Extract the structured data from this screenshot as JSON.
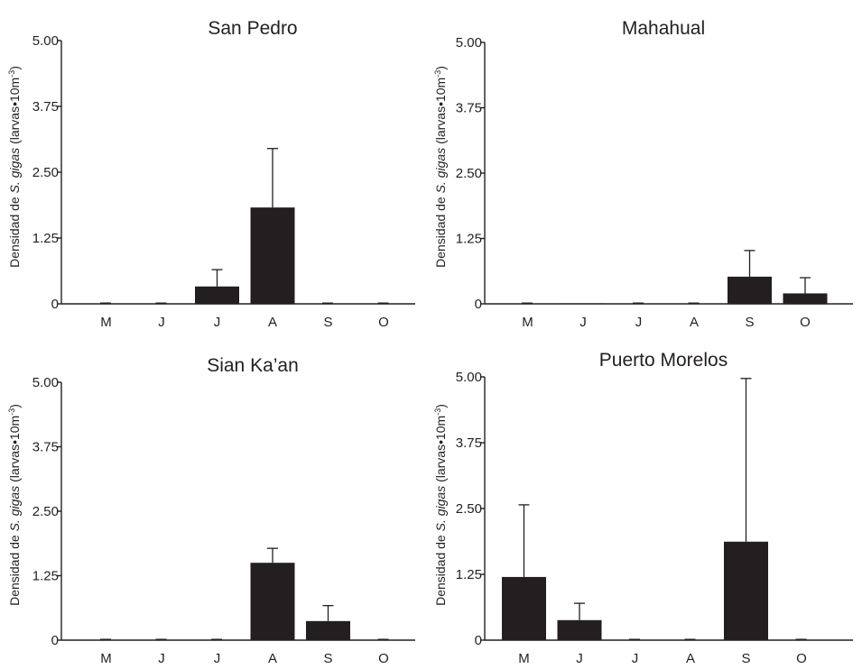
{
  "chart_data": [
    {
      "type": "bar",
      "title": "San Pedro",
      "ylabel_prefix": "Densidad de ",
      "ylabel_italic": "S. gigas",
      "ylabel_suffix": " (larvas•10m",
      "ylabel_sup": "-3",
      "ylabel_close": ")",
      "categories": [
        "M",
        "J",
        "J",
        "A",
        "S",
        "O"
      ],
      "yticks": [
        "0",
        "1.25",
        "2.50",
        "3.75",
        "5.00"
      ],
      "ylim": [
        0,
        5
      ],
      "values": [
        0,
        0,
        0.33,
        1.83,
        0,
        0
      ],
      "errors": [
        0,
        0,
        0.32,
        1.12,
        0,
        0
      ],
      "grid": false
    },
    {
      "type": "bar",
      "title": "Mahahual",
      "ylabel_prefix": "Densidad de ",
      "ylabel_italic": "S. gigas",
      "ylabel_suffix": " (larvas•10m",
      "ylabel_sup": "-3",
      "ylabel_close": ")",
      "categories": [
        "M",
        "J",
        "J",
        "A",
        "S",
        "O"
      ],
      "yticks": [
        "0",
        "1.25",
        "2.50",
        "3.75",
        "5.00"
      ],
      "ylim": [
        0,
        5
      ],
      "values": [
        0,
        0.01,
        0,
        0,
        0.52,
        0.2
      ],
      "errors": [
        0,
        0,
        0,
        0,
        0.5,
        0.3
      ],
      "grid": false
    },
    {
      "type": "bar",
      "title": "Sian Ka’an",
      "ylabel_prefix": "Densidad de ",
      "ylabel_italic": "S. gigas",
      "ylabel_suffix": " (larvas•10m",
      "ylabel_sup": "-3",
      "ylabel_close": ")",
      "categories": [
        "M",
        "J",
        "J",
        "A",
        "S",
        "O"
      ],
      "yticks": [
        "0",
        "1.25",
        "2.50",
        "3.75",
        "5.00"
      ],
      "ylim": [
        0,
        5
      ],
      "values": [
        0,
        0,
        0,
        1.5,
        0.37,
        0
      ],
      "errors": [
        0,
        0,
        0,
        0.28,
        0.3,
        0
      ],
      "grid": false
    },
    {
      "type": "bar",
      "title": "Puerto Morelos",
      "ylabel_prefix": "Densidad de ",
      "ylabel_italic": "S. gigas",
      "ylabel_suffix": " (larvas•10m",
      "ylabel_sup": "-3",
      "ylabel_close": ")",
      "categories": [
        "M",
        "J",
        "J",
        "A",
        "S",
        "O"
      ],
      "yticks": [
        "0",
        "1.25",
        "2.50",
        "3.75",
        "5.00"
      ],
      "ylim": [
        0,
        5
      ],
      "values": [
        1.2,
        0.38,
        0,
        0,
        1.87,
        0
      ],
      "errors": [
        1.37,
        0.32,
        0,
        0,
        3.1,
        0
      ],
      "grid": false
    }
  ]
}
